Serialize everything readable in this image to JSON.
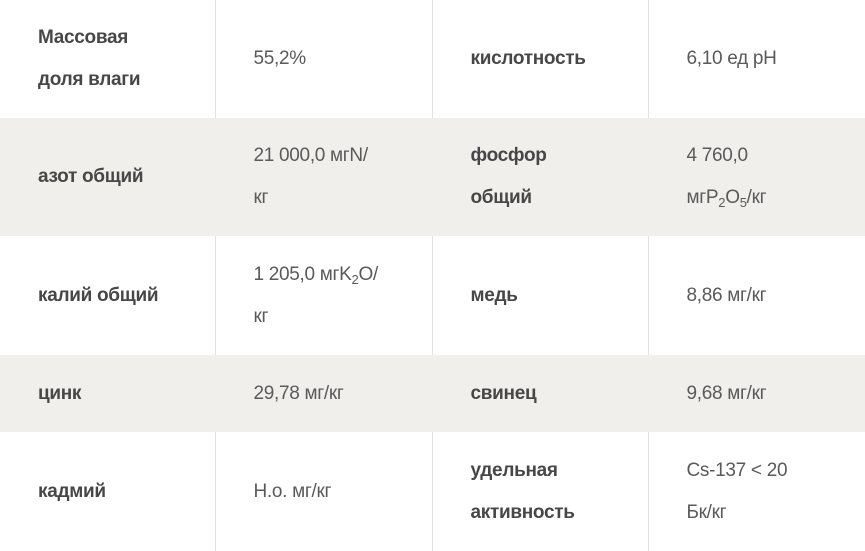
{
  "colors": {
    "row_alt_bg": "#f0efec",
    "label_text": "#474747",
    "value_text": "#5a5a5a",
    "border": "#e2e2e2"
  },
  "rows": [
    {
      "label1": "Массовая\nдоля влаги",
      "value1": [
        {
          "t": "55,2%"
        }
      ],
      "label2": "кислотность",
      "value2": [
        {
          "t": "6,10 ед pH"
        }
      ]
    },
    {
      "label1": "азот общий",
      "value1": [
        {
          "t": "21 000,0 мгN/\nкг"
        }
      ],
      "label2": "фосфор\nобщий",
      "value2": [
        {
          "t": "4 760,0\nмгP"
        },
        {
          "sub": "2"
        },
        {
          "t": "O"
        },
        {
          "sub": "5"
        },
        {
          "t": "/кг"
        }
      ]
    },
    {
      "label1": "калий общий",
      "value1": [
        {
          "t": "1 205,0 мгK"
        },
        {
          "sub": "2"
        },
        {
          "t": "O/\nкг"
        }
      ],
      "label2": "медь",
      "value2": [
        {
          "t": "8,86 мг/кг"
        }
      ]
    },
    {
      "label1": "цинк",
      "value1": [
        {
          "t": "29,78 мг/кг"
        }
      ],
      "label2": "свинец",
      "value2": [
        {
          "t": "9,68 мг/кг"
        }
      ]
    },
    {
      "label1": "кадмий",
      "value1": [
        {
          "t": "Н.о. мг/кг"
        }
      ],
      "label2": "удельная\nактивность",
      "value2": [
        {
          "t": "Cs-137 < 20\nБк/кг"
        }
      ]
    }
  ]
}
